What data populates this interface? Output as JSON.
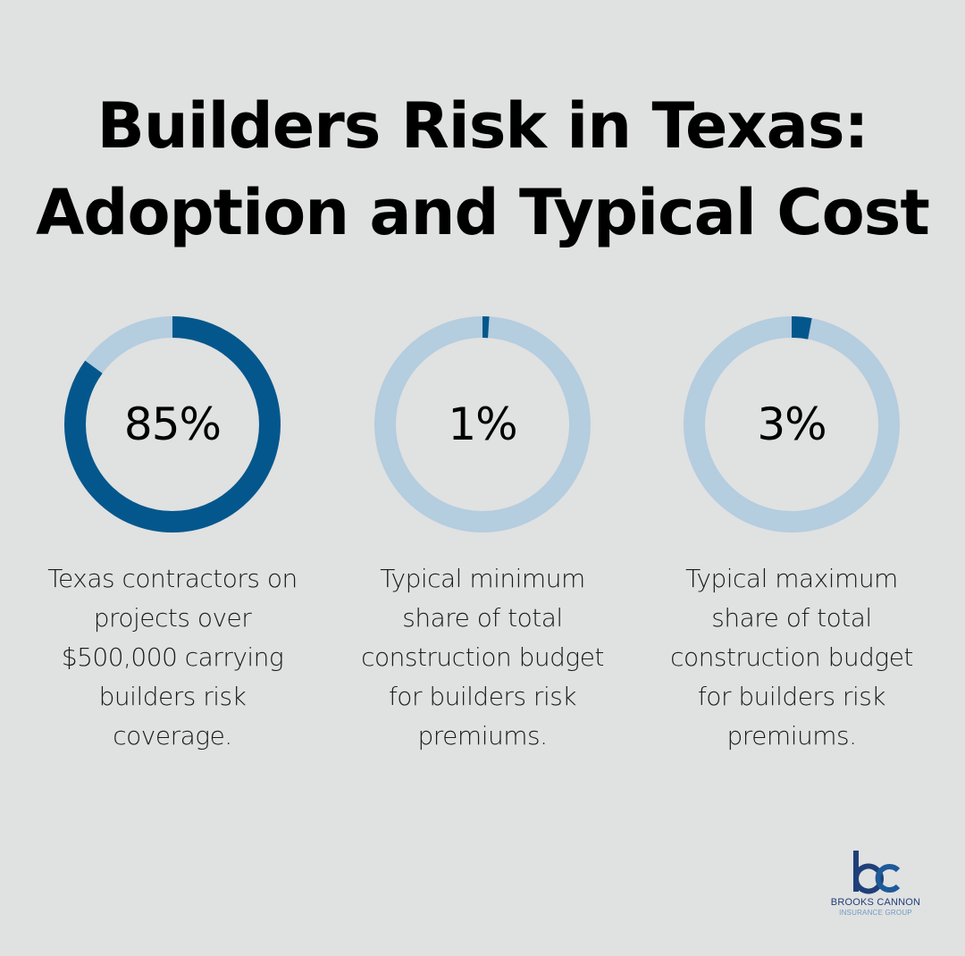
{
  "title": {
    "line1": "Builders Risk in Texas:",
    "line2": "Adoption and Typical Cost"
  },
  "colors": {
    "background": "#e0e1e1",
    "ring_fill": "#04578c",
    "ring_track": "#b4cddf",
    "logo_b": "#1f3f7a",
    "logo_c": "#1d5a9a",
    "logo_sub": "#6e9cc4"
  },
  "stats": [
    {
      "value": "85%",
      "percent": 85,
      "description": [
        "Texas contractors on",
        "projects over",
        "$500,000 carrying",
        "builders risk",
        "coverage."
      ]
    },
    {
      "value": "1%",
      "percent": 1,
      "description": [
        "Typical minimum",
        "share of total",
        "construction budget",
        "for builders risk",
        "premiums."
      ]
    },
    {
      "value": "3%",
      "percent": 3,
      "description": [
        "Typical maximum",
        "share of total",
        "construction budget",
        "for builders risk",
        "premiums."
      ]
    }
  ],
  "logo": {
    "mark": "bc",
    "name": "BROOKS CANNON",
    "subtitle": "INSURANCE GROUP"
  },
  "chart_data": {
    "type": "pie",
    "subtype": "donut-progress",
    "title": "Builders Risk in Texas: Adoption and Typical Cost",
    "categories": [
      "Texas contractors on projects over $500,000 carrying builders risk coverage.",
      "Typical minimum share of total construction budget for builders risk premiums.",
      "Typical maximum share of total construction budget for builders risk premiums."
    ],
    "values": [
      85,
      1,
      3
    ],
    "unit": "%",
    "max": 100
  }
}
